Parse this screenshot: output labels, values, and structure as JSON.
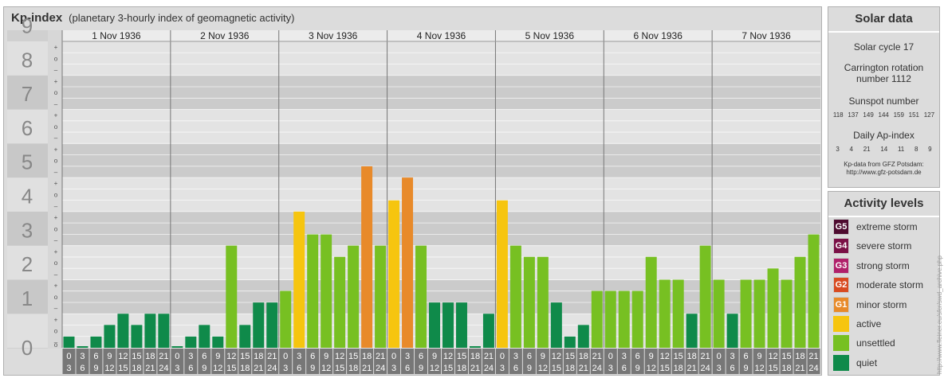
{
  "title": {
    "main": "Kp-index",
    "sub": "(planetary 3-hourly index of geomagnetic activity)"
  },
  "solar": {
    "heading": "Solar data",
    "cycle": "Solar cycle 17",
    "carrington_1": "Carrington rotation",
    "carrington_2": "number 1112",
    "sunspot_label": "Sunspot number",
    "sunspot_values": [
      "118",
      "137",
      "149",
      "144",
      "159",
      "151",
      "127"
    ],
    "ap_label": "Daily Ap-index",
    "ap_values": [
      "3",
      "4",
      "21",
      "14",
      "11",
      "8",
      "9"
    ],
    "credit_1": "Kp-data from GFZ Potsdam:",
    "credit_2": "http://www.gfz-potsdam.de"
  },
  "activity": {
    "heading": "Activity levels",
    "levels": [
      {
        "code": "G5",
        "label": "extreme storm",
        "color": "#4d0a2e"
      },
      {
        "code": "G4",
        "label": "severe storm",
        "color": "#7a1046"
      },
      {
        "code": "G3",
        "label": "strong storm",
        "color": "#b0206a"
      },
      {
        "code": "G2",
        "label": "moderate storm",
        "color": "#d84a20"
      },
      {
        "code": "G1",
        "label": "minor storm",
        "color": "#e88a2a"
      },
      {
        "code": "",
        "label": "active",
        "color": "#f6c50f"
      },
      {
        "code": "",
        "label": "unsettled",
        "color": "#77c022"
      },
      {
        "code": "",
        "label": "quiet",
        "color": "#0f8a4a"
      }
    ]
  },
  "watermark": "http://www.fleiner.eu/sfcr/swd_archive.php",
  "chart_data": {
    "type": "bar",
    "title": "Kp-index",
    "ylim": [
      0,
      9
    ],
    "y_ticks": [
      "0",
      "1",
      "2",
      "3",
      "4",
      "5",
      "6",
      "7",
      "8",
      "9"
    ],
    "sub_ticks": [
      "+",
      "o",
      "–"
    ],
    "days": [
      "1 Nov 1936",
      "2 Nov 1936",
      "3 Nov 1936",
      "4 Nov 1936",
      "5 Nov 1936",
      "6 Nov 1936",
      "7 Nov 1936"
    ],
    "hour_labels": [
      [
        "0",
        "3"
      ],
      [
        "3",
        "6"
      ],
      [
        "6",
        "9"
      ],
      [
        "9",
        "12"
      ],
      [
        "12",
        "15"
      ],
      [
        "15",
        "18"
      ],
      [
        "18",
        "21"
      ],
      [
        "21",
        "24"
      ]
    ],
    "values": [
      [
        0.33,
        0,
        0.33,
        0.67,
        1,
        0.67,
        1,
        1
      ],
      [
        0,
        0.33,
        0.67,
        0.33,
        3,
        0.67,
        1.33,
        1.33
      ],
      [
        1.67,
        4,
        3.33,
        3.33,
        2.67,
        3,
        5.33,
        3
      ],
      [
        4.33,
        5,
        3,
        1.33,
        1.33,
        1.33,
        0,
        1
      ],
      [
        4.33,
        3,
        2.67,
        2.67,
        1.33,
        0.33,
        0.67,
        1.67
      ],
      [
        1.67,
        1.67,
        1.67,
        2.67,
        2,
        2,
        1,
        3
      ],
      [
        2,
        1,
        2,
        2,
        2.33,
        2,
        2.67,
        3.33
      ]
    ],
    "colors": {
      "quiet": "#0f8a4a",
      "unsettled": "#77c022",
      "active": "#f6c50f",
      "minor": "#e88a2a"
    },
    "grid": true
  }
}
